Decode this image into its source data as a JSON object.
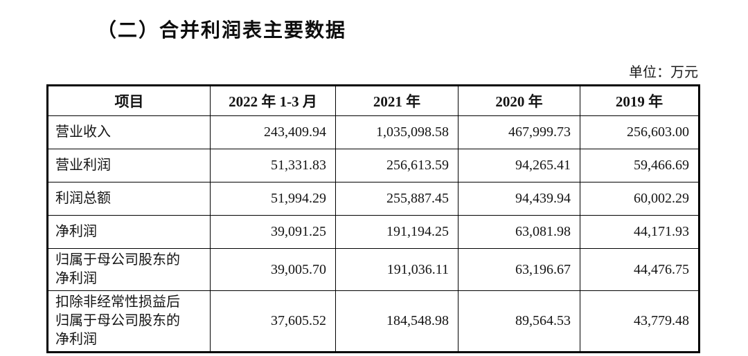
{
  "page": {
    "title": "（二）合并利润表主要数据",
    "unit_label": "单位：万元"
  },
  "table": {
    "headers": [
      "项目",
      "2022 年 1-3 月",
      "2021 年",
      "2020 年",
      "2019 年"
    ],
    "rows": [
      {
        "item": "营业收入",
        "values": [
          "243,409.94",
          "1,035,098.58",
          "467,999.73",
          "256,603.00"
        ]
      },
      {
        "item": "营业利润",
        "values": [
          "51,331.83",
          "256,613.59",
          "94,265.41",
          "59,466.69"
        ]
      },
      {
        "item": "利润总额",
        "values": [
          "51,994.29",
          "255,887.45",
          "94,439.94",
          "60,002.29"
        ]
      },
      {
        "item": "净利润",
        "values": [
          "39,091.25",
          "191,194.25",
          "63,081.98",
          "44,171.93"
        ]
      },
      {
        "item": "归属于母公司股东的\n净利润",
        "values": [
          "39,005.70",
          "191,036.11",
          "63,196.67",
          "44,476.75"
        ]
      },
      {
        "item": "扣除非经常性损益后\n归属于母公司股东的\n净利润",
        "values": [
          "37,605.52",
          "184,548.98",
          "89,564.53",
          "43,779.48"
        ]
      }
    ]
  },
  "colors": {
    "background": "#ffffff",
    "text": "#141414",
    "border": "#000000"
  }
}
